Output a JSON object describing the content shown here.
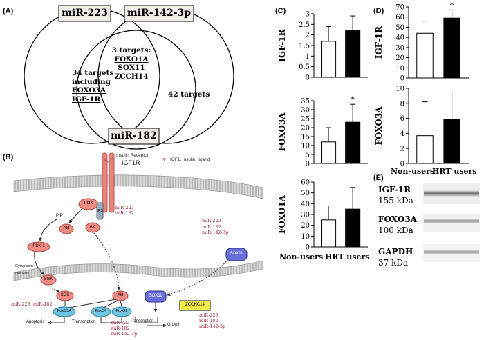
{
  "panelA": {
    "label": "(A)",
    "sets": [
      "miR-223",
      "miR-142-3p",
      "miR-182"
    ],
    "center": [
      "3 targets:",
      "FOXO1A",
      "SOX11",
      "ZCCH14"
    ],
    "left_overlap": [
      "34 targets",
      "including",
      "FOXO3A",
      "IGF-1R"
    ],
    "right_overlap": "42 targets"
  },
  "panelB": {
    "label": "(B)",
    "receptor_caption": "Insulin Receptor",
    "receptor_name": "IGF1R",
    "ligand_legend": "IGF1, insulin, ligand",
    "pip": "PIP",
    "nodes": {
      "pi3k": "PI3K",
      "irs": "IRS",
      "akt1": "Akt",
      "akt2": "Akt",
      "pdk1": "PDK 1",
      "sgk1": "SGK",
      "sgk2": "SGK",
      "akt3": "Akt",
      "foxo3a": "FoxO3A",
      "foxo4": "FoxO4",
      "foxo1": "FoxO1",
      "sox11": "SOX11",
      "sox11b": "SOX11",
      "zcchc14": "ZCCHC14"
    },
    "mir_receptor": [
      "miR-223",
      "miR-182"
    ],
    "mir_sox": [
      "miR-223",
      "miR-182",
      "miR-142-3p"
    ],
    "mir_sgk": "miR-223, miR-182",
    "mir_akt": [
      "miR-223",
      "miR-182",
      "miR-142-3p"
    ],
    "mir_zcchc": [
      "miR-223",
      "miR-182",
      "miR-142-3p"
    ],
    "cytoplasm": "Cytoplasm",
    "nucleus": "Nucleus",
    "bottom": {
      "apoptosis": "Apoptosis",
      "transcription1": "Transcription",
      "transcription2": "Transcription",
      "growth": "Growth"
    }
  },
  "panelC": {
    "label": "(C)"
  },
  "panelD": {
    "label": "(D)"
  },
  "panelE": {
    "label": "(E)",
    "rows": [
      {
        "name": "IGF-1R",
        "size": "155 kDa"
      },
      {
        "name": "FOXO3A",
        "size": "100 kDa"
      },
      {
        "name": "GAPDH",
        "size": "37 kDa"
      }
    ]
  },
  "chart_data": [
    {
      "panel": "C",
      "type": "bar",
      "ylabel": "IGF-1R",
      "categories": [
        "Non-users",
        "HRT users"
      ],
      "values": [
        1.7,
        2.2
      ],
      "errors": [
        0.7,
        0.7
      ],
      "ylim": [
        0,
        3
      ],
      "yticks": [
        "0",
        "0.5",
        "1",
        "1.5",
        "2",
        "2.5",
        "3"
      ],
      "fills": [
        "#ffffff",
        "#000000"
      ],
      "star": ""
    },
    {
      "panel": "C",
      "type": "bar",
      "ylabel": "FOXO3A",
      "categories": [
        "Non-users",
        "HRT users"
      ],
      "values": [
        12,
        23
      ],
      "errors": [
        8,
        10
      ],
      "ylim": [
        0,
        35
      ],
      "yticks": [
        "0",
        "5",
        "10",
        "15",
        "20",
        "25",
        "30",
        "35"
      ],
      "fills": [
        "#ffffff",
        "#000000"
      ],
      "star": "*"
    },
    {
      "panel": "C",
      "type": "bar",
      "ylabel": "FOXO1A",
      "categories": [
        "Non-users",
        "HRT users"
      ],
      "values": [
        25,
        35
      ],
      "errors": [
        13,
        20
      ],
      "ylim": [
        0,
        60
      ],
      "yticks": [
        "0",
        "10",
        "20",
        "30",
        "40",
        "50",
        "60"
      ],
      "fills": [
        "#ffffff",
        "#000000"
      ],
      "star": ""
    },
    {
      "panel": "D",
      "type": "bar",
      "ylabel": "IGF-1R",
      "categories": [
        "Non-users",
        "HRT users"
      ],
      "values": [
        44,
        59
      ],
      "errors": [
        12,
        8
      ],
      "ylim": [
        0,
        70
      ],
      "yticks": [
        "0",
        "10",
        "20",
        "30",
        "40",
        "50",
        "60",
        "70"
      ],
      "fills": [
        "#ffffff",
        "#000000"
      ],
      "star": "*"
    },
    {
      "panel": "D",
      "type": "bar",
      "ylabel": "FOXO3A",
      "categories": [
        "Non-users",
        "HRT users"
      ],
      "values": [
        3.7,
        5.9
      ],
      "errors": [
        4.5,
        3.6
      ],
      "ylim": [
        0,
        10
      ],
      "yticks": [
        "0",
        "2",
        "4",
        "6",
        "8",
        "10"
      ],
      "fills": [
        "#ffffff",
        "#000000"
      ],
      "star": ""
    }
  ]
}
